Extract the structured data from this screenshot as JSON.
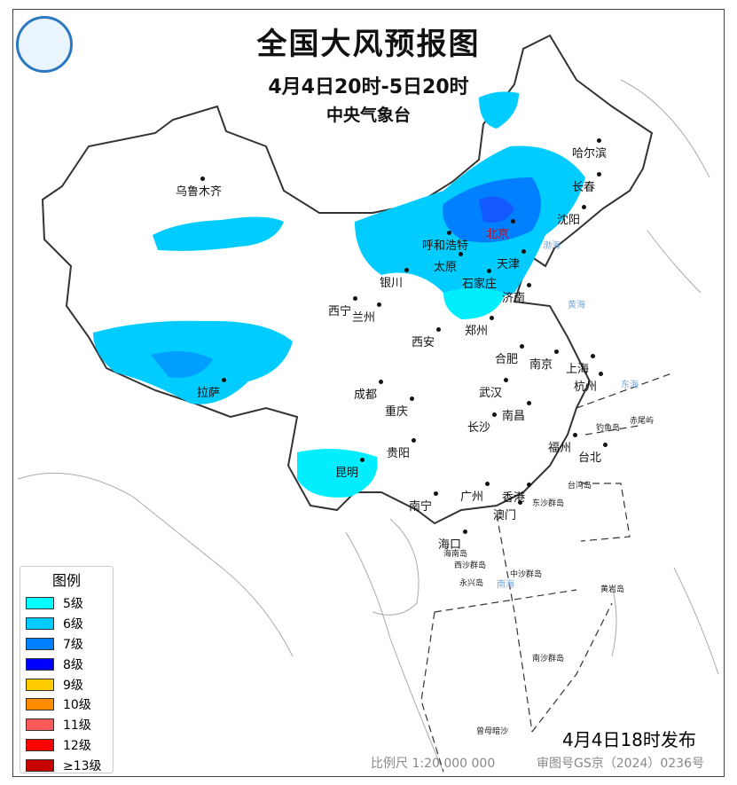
{
  "header": {
    "title": "全国大风预报图",
    "period": "4月4日20时-5日20时",
    "agency": "中央气象台"
  },
  "legend": {
    "title": "图例",
    "items": [
      {
        "label": "5级",
        "color": "#00ffff"
      },
      {
        "label": "6级",
        "color": "#00ccff"
      },
      {
        "label": "7级",
        "color": "#0080ff"
      },
      {
        "label": "8级",
        "color": "#0000ff"
      },
      {
        "label": "9级",
        "color": "#ffcc00"
      },
      {
        "label": "10级",
        "color": "#ff8c00"
      },
      {
        "label": "11级",
        "color": "#ff5a5a"
      },
      {
        "label": "12级",
        "color": "#ff0000"
      },
      {
        "label": "≥13级",
        "color": "#c80000"
      }
    ]
  },
  "cities": [
    "乌鲁木齐",
    "哈尔滨",
    "长春",
    "沈阳",
    "北京",
    "呼和浩特",
    "天津",
    "太原",
    "石家庄",
    "银川",
    "济南",
    "西宁",
    "兰州",
    "郑州",
    "西安",
    "合肥",
    "南京",
    "上海",
    "拉萨",
    "成都",
    "武汉",
    "杭州",
    "重庆",
    "南昌",
    "长沙",
    "贵阳",
    "福州",
    "台北",
    "昆明",
    "南宁",
    "广州",
    "香港",
    "澳门",
    "海口"
  ],
  "seas": [
    "渤海",
    "黄海",
    "东海",
    "南海"
  ],
  "islands": [
    "钓鱼岛",
    "赤尾屿",
    "台湾岛",
    "东沙群岛",
    "海南岛",
    "西沙群岛",
    "永兴岛",
    "中沙群岛",
    "黄岩岛",
    "南沙群岛",
    "曾母暗沙"
  ],
  "footer": {
    "issued": "4月4日18时发布",
    "scale": "比例尺 1:20 000 000",
    "approval": "审图号GS京（2024）0236号"
  }
}
